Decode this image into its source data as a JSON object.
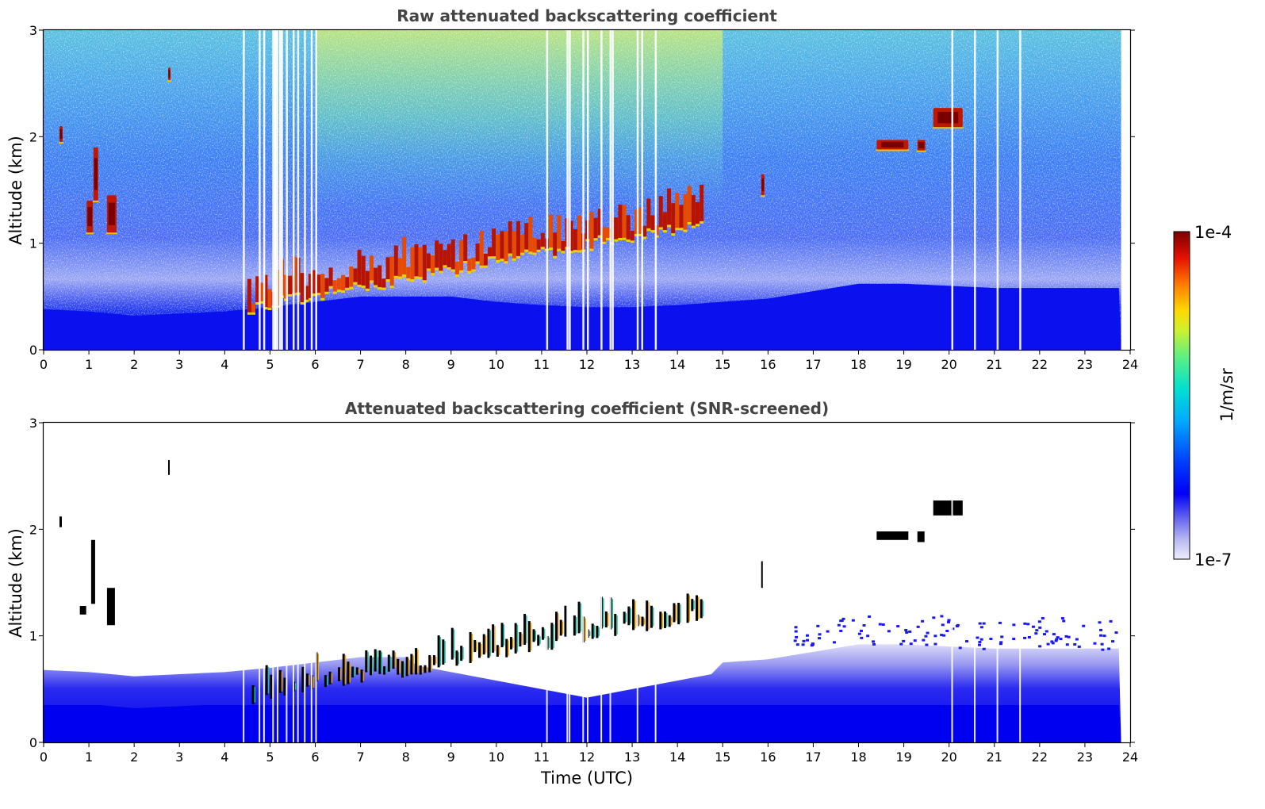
{
  "chart_data": [
    {
      "type": "heatmap",
      "title": "Raw attenuated backscattering coefficient",
      "xlabel": "",
      "ylabel": "Altitude (km)",
      "xlim": [
        0,
        24
      ],
      "ylim": [
        0,
        3
      ],
      "xticks": [
        "0",
        "1",
        "2",
        "3",
        "4",
        "5",
        "6",
        "7",
        "8",
        "9",
        "10",
        "11",
        "12",
        "13",
        "14",
        "15",
        "16",
        "17",
        "18",
        "19",
        "20",
        "21",
        "22",
        "23",
        "24"
      ],
      "yticks": [
        "0",
        "1",
        "2",
        "3"
      ],
      "features": [
        {
          "kind": "boundary_layer",
          "x_range": [
            0,
            24
          ],
          "top_km_by_hour": [
            0.38,
            0.36,
            0.32,
            0.34,
            0.36,
            0.4,
            0.45,
            0.5,
            0.5,
            0.5,
            0.45,
            0.42,
            0.4,
            0.4,
            0.42,
            0.45,
            0.48,
            0.55,
            0.62,
            0.62,
            0.6,
            0.58,
            0.58,
            0.58,
            0.58
          ]
        },
        {
          "kind": "cloud_layer",
          "x_range": [
            4.5,
            14.5
          ],
          "base_km_start": 0.4,
          "base_km_end": 1.2
        },
        {
          "kind": "cloud",
          "x_range": [
            0.9,
            1.6
          ],
          "y_range": [
            1.1,
            1.9
          ]
        },
        {
          "kind": "cloud",
          "x_range": [
            18.4,
            19.4
          ],
          "y_range": [
            1.88,
            1.96
          ]
        },
        {
          "kind": "cloud",
          "x_range": [
            19.6,
            20.3
          ],
          "y_range": [
            2.08,
            2.25
          ]
        }
      ],
      "grid": false
    },
    {
      "type": "heatmap",
      "title": "Attenuated backscattering coefficient (SNR-screened)",
      "xlabel": "Time (UTC)",
      "ylabel": "Altitude (km)",
      "xlim": [
        0,
        24
      ],
      "ylim": [
        0,
        3
      ],
      "xticks": [
        "0",
        "1",
        "2",
        "3",
        "4",
        "5",
        "6",
        "7",
        "8",
        "9",
        "10",
        "11",
        "12",
        "13",
        "14",
        "15",
        "16",
        "17",
        "18",
        "19",
        "20",
        "21",
        "22",
        "23",
        "24"
      ],
      "yticks": [
        "0",
        "1",
        "2",
        "3"
      ],
      "grid": false
    }
  ],
  "colorbar": {
    "label": "1/m/sr",
    "min_label": "1e-7",
    "max_label": "1e-4",
    "scale": "log",
    "colormap": [
      "#e8e8fa",
      "#b4b4f0",
      "#7878ee",
      "#0000f5",
      "#0050ff",
      "#00a0ff",
      "#00d8e0",
      "#40f0a0",
      "#a0f060",
      "#f0f020",
      "#ffb000",
      "#ff5000",
      "#e00000",
      "#800000"
    ]
  }
}
